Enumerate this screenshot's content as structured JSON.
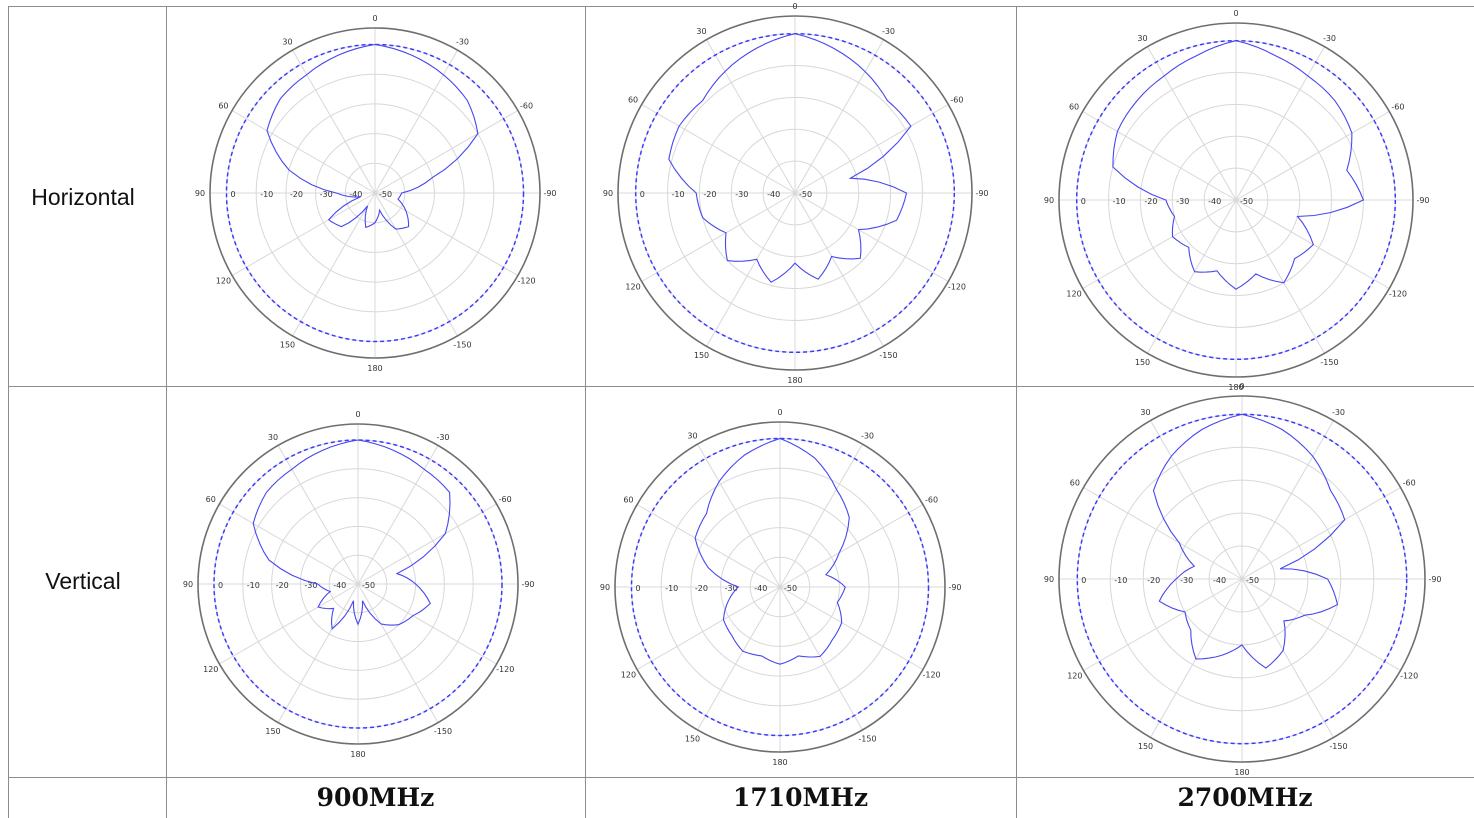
{
  "table": {
    "row_labels": [
      "Horizontal",
      "Vertical"
    ],
    "column_labels": [
      "900MHz",
      "1710MHz",
      "2700MHz"
    ]
  },
  "colors": {
    "trace": "#4747f0",
    "reference": "#3b3bff",
    "grid": "#d8d8d8",
    "border": "#8c8c8c"
  },
  "chart_data": [
    {
      "type": "polar",
      "row": "Horizontal",
      "column": "900MHz",
      "angle_ticks": [
        "0",
        "30",
        "60",
        "90",
        "120",
        "150",
        "180",
        "-150",
        "-120",
        "-90",
        "-60",
        "-30"
      ],
      "radial_ticks": [
        "0",
        "-10",
        "-20",
        "-30",
        "-40",
        "-50"
      ],
      "rlim": [
        -50,
        0
      ],
      "angles": [
        -180,
        -165,
        -150,
        -135,
        -120,
        -105,
        -90,
        -75,
        -60,
        -45,
        -30,
        -15,
        0,
        15,
        30,
        45,
        60,
        75,
        90,
        105,
        120,
        135,
        150,
        165,
        180
      ],
      "series": [
        {
          "values": [
            -40,
            -44,
            -36,
            -34,
            -38,
            -42,
            -41,
            -30,
            -10,
            -6,
            -4,
            -2,
            0,
            -2,
            -4,
            -5,
            -8,
            -20,
            -37,
            -45,
            -32,
            -34,
            -45,
            -38,
            -40
          ]
        }
      ]
    },
    {
      "type": "polar",
      "row": "Horizontal",
      "column": "1710MHz",
      "angle_ticks": [
        "0",
        "30",
        "60",
        "90",
        "120",
        "150",
        "180",
        "-150",
        "-120",
        "-90",
        "-60",
        "-30"
      ],
      "radial_ticks": [
        "0",
        "-10",
        "-20",
        "-30",
        "-40",
        "-50"
      ],
      "rlim": [
        -50,
        0
      ],
      "angles": [
        -180,
        -165,
        -150,
        -135,
        -120,
        -105,
        -90,
        -75,
        -60,
        -45,
        -30,
        -15,
        0,
        15,
        30,
        45,
        60,
        75,
        90,
        105,
        120,
        135,
        150,
        165,
        180
      ],
      "series": [
        {
          "values": [
            -28,
            -22,
            -27,
            -21,
            -27,
            -17,
            -15,
            -32,
            -8,
            -9,
            -6,
            -3,
            0,
            -3,
            -6,
            -9,
            -8,
            -9,
            -19,
            -20,
            -25,
            -20,
            -26,
            -21,
            -28
          ]
        }
      ]
    },
    {
      "type": "polar",
      "row": "Horizontal",
      "column": "2700MHz",
      "angle_ticks": [
        "0",
        "30",
        "60",
        "90",
        "120",
        "150",
        "180",
        "-150",
        "-120",
        "-90",
        "-60",
        "-30"
      ],
      "radial_ticks": [
        "0",
        "-10",
        "-20",
        "-30",
        "-40",
        "-50"
      ],
      "rlim": [
        -50,
        0
      ],
      "angles": [
        -180,
        -165,
        -150,
        -135,
        -120,
        -105,
        -90,
        -75,
        -60,
        -45,
        -30,
        -15,
        0,
        15,
        30,
        45,
        60,
        75,
        90,
        105,
        120,
        135,
        150,
        165,
        180
      ],
      "series": [
        {
          "values": [
            -22,
            -26,
            -20,
            -24,
            -22,
            -30,
            -10,
            -14,
            -8,
            -6,
            -5,
            -3,
            0,
            -3,
            -5,
            -6,
            -7,
            -10,
            -28,
            -30,
            -27,
            -29,
            -24,
            -27,
            -22
          ]
        }
      ]
    },
    {
      "type": "polar",
      "row": "Vertical",
      "column": "900MHz",
      "angle_ticks": [
        "0",
        "30",
        "60",
        "90",
        "120",
        "150",
        "180",
        "-150",
        "-120",
        "-90",
        "-60",
        "-30"
      ],
      "radial_ticks": [
        "0",
        "-10",
        "-20",
        "-30",
        "-40",
        "-50"
      ],
      "rlim": [
        -50,
        0
      ],
      "angles": [
        -180,
        -165,
        -150,
        -135,
        -120,
        -105,
        -90,
        -75,
        -60,
        -45,
        -30,
        -15,
        0,
        15,
        30,
        45,
        60,
        75,
        90,
        105,
        120,
        135,
        150,
        165,
        180
      ],
      "series": [
        {
          "values": [
            -36,
            -44,
            -34,
            -30,
            -28,
            -24,
            -30,
            -36,
            -15,
            -5,
            -4,
            -2,
            0,
            -2,
            -4,
            -5,
            -8,
            -18,
            -36,
            -40,
            -34,
            -38,
            -32,
            -44,
            -36
          ]
        }
      ]
    },
    {
      "type": "polar",
      "row": "Vertical",
      "column": "1710MHz",
      "angle_ticks": [
        "0",
        "30",
        "60",
        "90",
        "120",
        "150",
        "180",
        "-150",
        "-120",
        "-90",
        "-60",
        "-30"
      ],
      "radial_ticks": [
        "0",
        "-10",
        "-20",
        "-30",
        "-40",
        "-50"
      ],
      "rlim": [
        -50,
        0
      ],
      "angles": [
        -180,
        -165,
        -150,
        -135,
        -120,
        -105,
        -90,
        -75,
        -60,
        -45,
        -30,
        -15,
        0,
        15,
        30,
        45,
        60,
        75,
        90,
        105,
        120,
        135,
        150,
        165,
        180
      ],
      "series": [
        {
          "values": [
            -24,
            -26,
            -23,
            -25,
            -26,
            -30,
            -28,
            -34,
            -27,
            -17,
            -12,
            -5,
            0,
            -4,
            -9,
            -15,
            -17,
            -25,
            -36,
            -32,
            -28,
            -27,
            -25,
            -26,
            -24
          ]
        }
      ]
    },
    {
      "type": "polar",
      "row": "Vertical",
      "column": "2700MHz",
      "angle_ticks": [
        "0",
        "30",
        "60",
        "90",
        "120",
        "150",
        "180",
        "-150",
        "-120",
        "-90",
        "-60",
        "-30"
      ],
      "radial_ticks": [
        "0",
        "-10",
        "-20",
        "-30",
        "-40",
        "-50"
      ],
      "rlim": [
        -50,
        0
      ],
      "angles": [
        -180,
        -165,
        -150,
        -135,
        -120,
        -105,
        -90,
        -75,
        -60,
        -45,
        -30,
        -15,
        0,
        15,
        30,
        45,
        60,
        75,
        90,
        105,
        120,
        135,
        150,
        165,
        180
      ],
      "series": [
        {
          "values": [
            -30,
            -22,
            -25,
            -32,
            -28,
            -20,
            -24,
            -38,
            -14,
            -12,
            -7,
            -3,
            0,
            -3,
            -7,
            -12,
            -28,
            -35,
            -30,
            -24,
            -30,
            -28,
            -22,
            -26,
            -30
          ]
        }
      ]
    }
  ]
}
